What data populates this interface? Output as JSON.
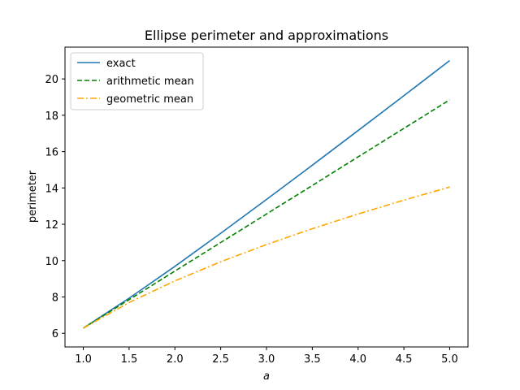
{
  "chart_data": {
    "type": "line",
    "title": "Ellipse perimeter and approximations",
    "xlabel": "a",
    "ylabel": "perimeter",
    "xlim": [
      0.8,
      5.2
    ],
    "ylim": [
      5.25,
      21.75
    ],
    "xticks": [
      1.0,
      1.5,
      2.0,
      2.5,
      3.0,
      3.5,
      4.0,
      4.5,
      5.0
    ],
    "xtick_labels": [
      "1.0",
      "1.5",
      "2.0",
      "2.5",
      "3.0",
      "3.5",
      "4.0",
      "4.5",
      "5.0"
    ],
    "yticks": [
      6,
      8,
      10,
      12,
      14,
      16,
      18,
      20
    ],
    "ytick_labels": [
      "6",
      "8",
      "10",
      "12",
      "14",
      "16",
      "18",
      "20"
    ],
    "grid": false,
    "legend_position": "top-left",
    "x": [
      1.0,
      1.5,
      2.0,
      2.5,
      3.0,
      3.5,
      4.0,
      4.5,
      5.0
    ],
    "series": [
      {
        "name": "exact",
        "color": "#1f77b4",
        "style": "solid",
        "values": [
          6.283,
          7.933,
          9.688,
          11.506,
          13.365,
          15.254,
          17.157,
          19.077,
          21.01
        ]
      },
      {
        "name": "arithmetic mean",
        "color": "#008000",
        "style": "dashed",
        "values": [
          6.283,
          7.854,
          9.425,
          10.996,
          12.566,
          14.137,
          15.708,
          17.279,
          18.85
        ]
      },
      {
        "name": "geometric mean",
        "color": "#ffa500",
        "style": "dashdot",
        "values": [
          6.283,
          7.695,
          8.886,
          9.935,
          10.883,
          11.755,
          12.566,
          13.329,
          14.05
        ]
      }
    ]
  }
}
